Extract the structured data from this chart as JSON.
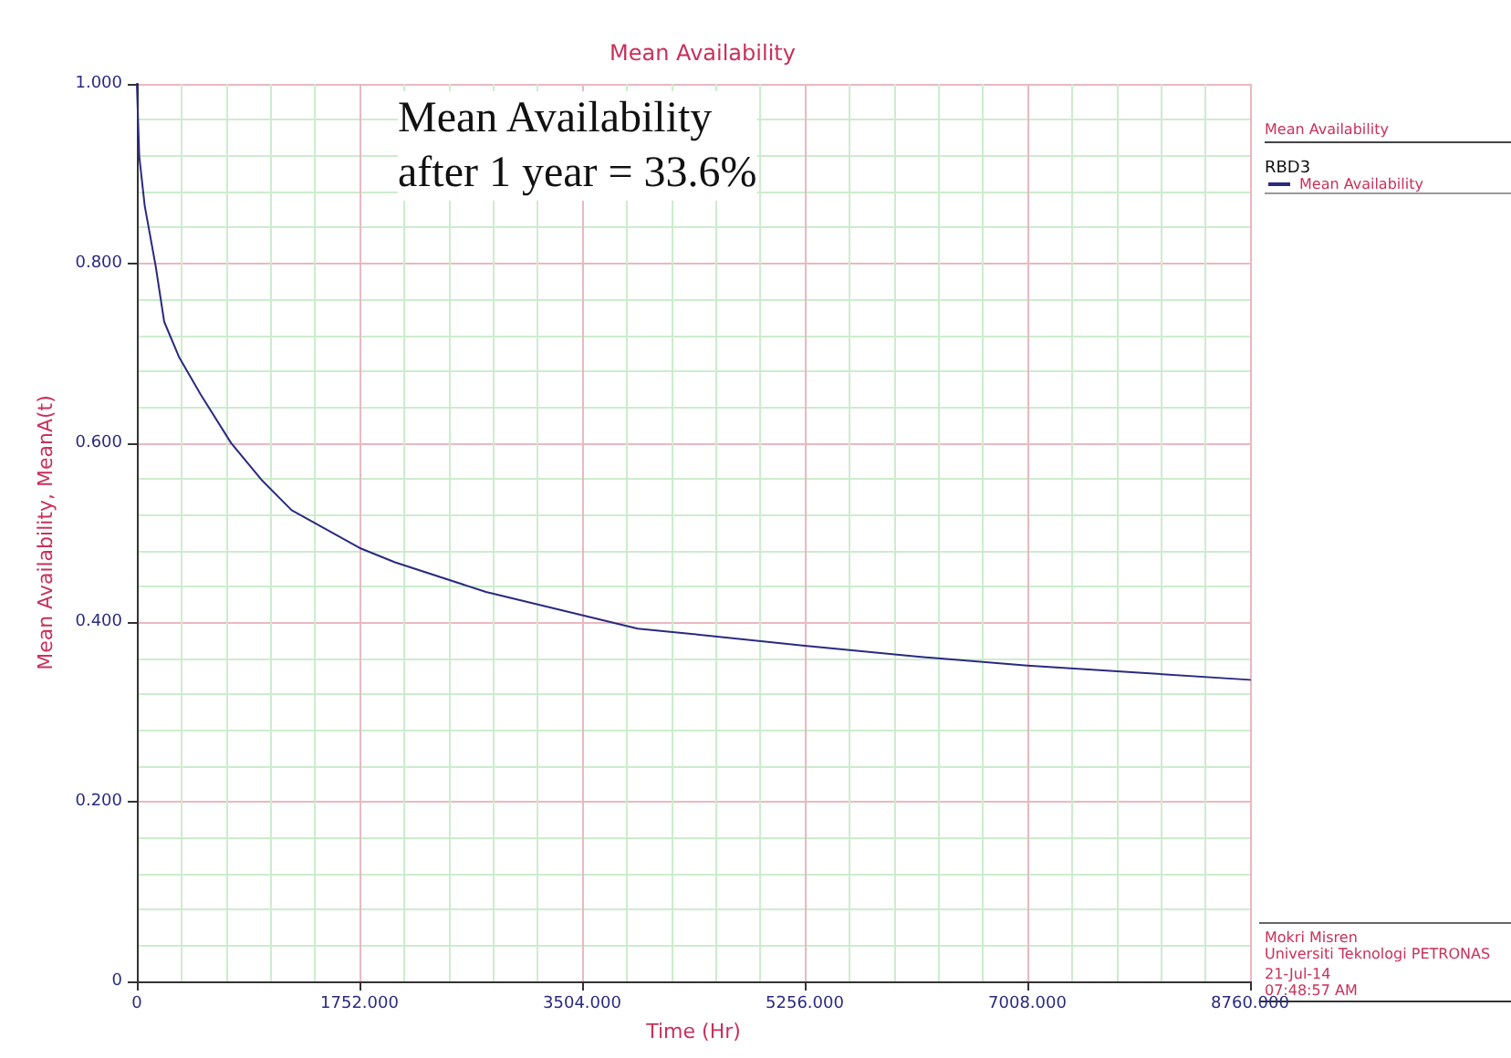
{
  "chart_data": {
    "type": "line",
    "title": "Mean Availability",
    "xlabel": "Time (Hr)",
    "ylabel": "Mean Availability, MeanA(t)",
    "legend_title": "Mean Availability",
    "annotations": [
      "Mean Availability\nafter 1 year = 33.6%",
      "RBD3",
      "Mokri Misren",
      "Universiti Teknologi PETRONAS",
      "21-Jul-14",
      "07:48:57 AM"
    ],
    "series": [
      {
        "name": "Mean Availability",
        "color": "#2a2a80",
        "x": [
          0,
          19,
          62,
          148,
          215,
          334,
          502,
          741,
          980,
          1218,
          1752,
          2031,
          2747,
          3504,
          3941,
          4380,
          5256,
          6132,
          7008,
          7884,
          8760
        ],
        "values": [
          1.0,
          0.919,
          0.864,
          0.797,
          0.735,
          0.695,
          0.654,
          0.6,
          0.559,
          0.525,
          0.483,
          0.467,
          0.434,
          0.408,
          0.393,
          0.387,
          0.374,
          0.362,
          0.352,
          0.344,
          0.336
        ]
      }
    ],
    "xlim": [
      0,
      8760
    ],
    "xticks": [
      0,
      {
        "value": 1752,
        "label": "1752.000"
      },
      {
        "value": 3504,
        "label": "3504.000"
      },
      {
        "value": 5256,
        "label": "5256.000"
      },
      {
        "value": 7008,
        "label": "7008.000"
      },
      {
        "value": 8760,
        "label": "8760.000"
      }
    ],
    "ylim": [
      0,
      1
    ],
    "yticks": [
      0,
      {
        "value": 0.2,
        "label": "0.200"
      },
      {
        "value": 0.4,
        "label": "0.400"
      },
      {
        "value": 0.6,
        "label": "0.600"
      },
      {
        "value": 0.8,
        "label": "0.800"
      },
      {
        "value": 1,
        "label": "1.000"
      }
    ],
    "grid": true,
    "legend": "top right",
    "marker": "none",
    "line_style": "solid"
  }
}
